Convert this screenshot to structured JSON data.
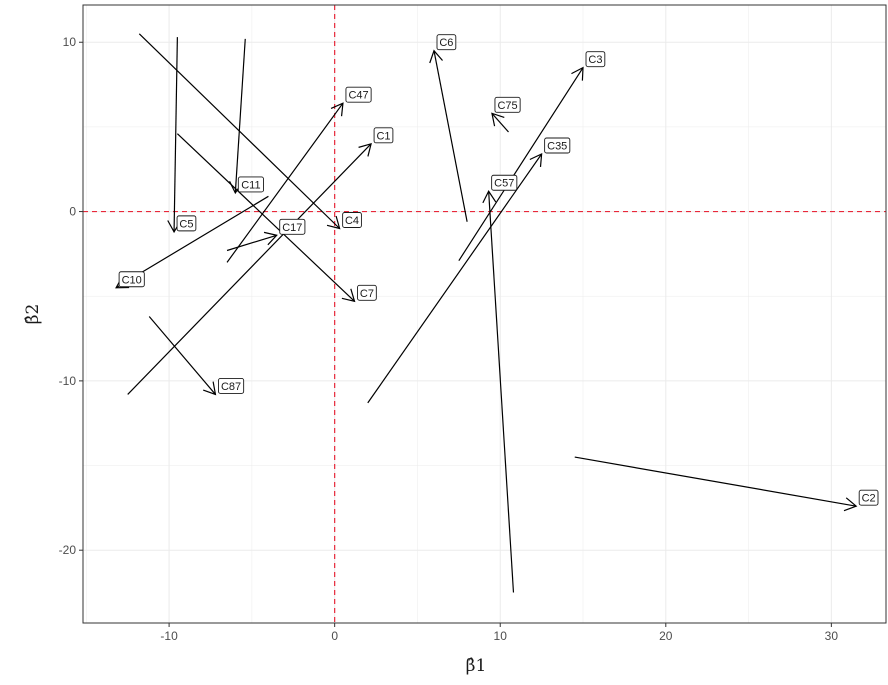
{
  "chart_data": {
    "type": "arrow-scatter",
    "xlabel": "β̂1",
    "ylabel": "β̂2",
    "xlim": [
      -15.2,
      33.3
    ],
    "ylim": [
      -24.3,
      12.2
    ],
    "x_ticks": [
      -10,
      0,
      10,
      20,
      30
    ],
    "y_ticks": [
      -20,
      -10,
      0,
      10
    ],
    "reference_lines": {
      "x": 0,
      "y": 0,
      "color": "#e8283a",
      "style": "dashed"
    },
    "grid": true,
    "colors": {
      "arrow": "#000000",
      "reference": "#e8283a",
      "grid": "#ebebeb"
    },
    "arrows": [
      {
        "label": "C3",
        "x0": 7.5,
        "y0": -2.9,
        "x1": 15.0,
        "y1": 8.5
      },
      {
        "label": "C6",
        "x0": 8.0,
        "y0": -0.6,
        "x1": 6.0,
        "y1": 9.5
      },
      {
        "label": "C75",
        "x0": 10.5,
        "y0": 4.7,
        "x1": 9.5,
        "y1": 5.8
      },
      {
        "label": "C35",
        "x0": 2.0,
        "y0": -11.3,
        "x1": 12.5,
        "y1": 3.4
      },
      {
        "label": "C57",
        "x0": 10.8,
        "y0": -22.5,
        "x1": 9.3,
        "y1": 1.2
      },
      {
        "label": "C1",
        "x0": -12.5,
        "y0": -10.8,
        "x1": 2.2,
        "y1": 4.0
      },
      {
        "label": "C47",
        "x0": -6.5,
        "y0": -3.0,
        "x1": 0.5,
        "y1": 6.4
      },
      {
        "label": "C4",
        "x0": -11.8,
        "y0": 10.5,
        "x1": 0.3,
        "y1": -1.0
      },
      {
        "label": "C7",
        "x0": -9.5,
        "y0": 4.6,
        "x1": 1.2,
        "y1": -5.3
      },
      {
        "label": "C11",
        "x0": -5.4,
        "y0": 10.2,
        "x1": -6.0,
        "y1": 1.1
      },
      {
        "label": "C5",
        "x0": -9.5,
        "y0": 10.3,
        "x1": -9.7,
        "y1": -1.2
      },
      {
        "label": "C10",
        "x0": -4.0,
        "y0": 0.9,
        "x1": -13.2,
        "y1": -4.5
      },
      {
        "label": "C17",
        "x0": -6.5,
        "y0": -2.3,
        "x1": -3.5,
        "y1": -1.4
      },
      {
        "label": "C87",
        "x0": -11.2,
        "y0": -6.2,
        "x1": -7.2,
        "y1": -10.8
      },
      {
        "label": "C2",
        "x0": 14.5,
        "y0": -14.5,
        "x1": 31.5,
        "y1": -17.4
      }
    ]
  }
}
